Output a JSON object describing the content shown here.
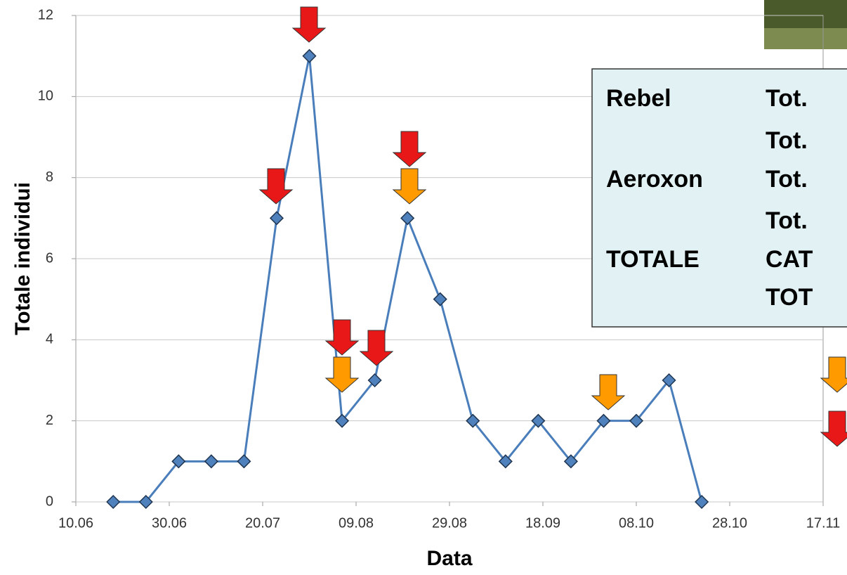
{
  "chart_data": {
    "type": "line",
    "x_label": "Data",
    "y_label": "Totale individui",
    "x": [
      169,
      176,
      183,
      190,
      197,
      204,
      211,
      218,
      225,
      232,
      239,
      246,
      253,
      260,
      267,
      274,
      281,
      288,
      295
    ],
    "series": [
      {
        "color": "#4a7ebb",
        "values": [
          0,
          0,
          1,
          1,
          1,
          7,
          11,
          2,
          3,
          7,
          5,
          2,
          1,
          2,
          1,
          2,
          2,
          3,
          0
        ]
      }
    ],
    "xlim": [
      161,
      321
    ],
    "xticks": [
      {
        "value": 161,
        "label": "10.06"
      },
      {
        "value": 181,
        "label": "30.06"
      },
      {
        "value": 201,
        "label": "20.07"
      },
      {
        "value": 221,
        "label": "09.08"
      },
      {
        "value": 241,
        "label": "29.08"
      },
      {
        "value": 261,
        "label": "18.09"
      },
      {
        "value": 281,
        "label": "08.10"
      },
      {
        "value": 301,
        "label": "28.10"
      },
      {
        "value": 321,
        "label": "17.11"
      }
    ],
    "ylim": [
      0,
      12
    ],
    "yticks": [
      0,
      2,
      4,
      6,
      8,
      10,
      12
    ],
    "grid": true,
    "legend_box": [
      {
        "name": "Rebel",
        "value": "Tot."
      },
      {
        "value": "Tot."
      },
      {
        "name": "Aeroxon",
        "value": "Tot."
      },
      {
        "value": "Tot."
      },
      {
        "name": "TOTALE",
        "value": "CAT"
      },
      {
        "value": "TOT"
      }
    ]
  }
}
